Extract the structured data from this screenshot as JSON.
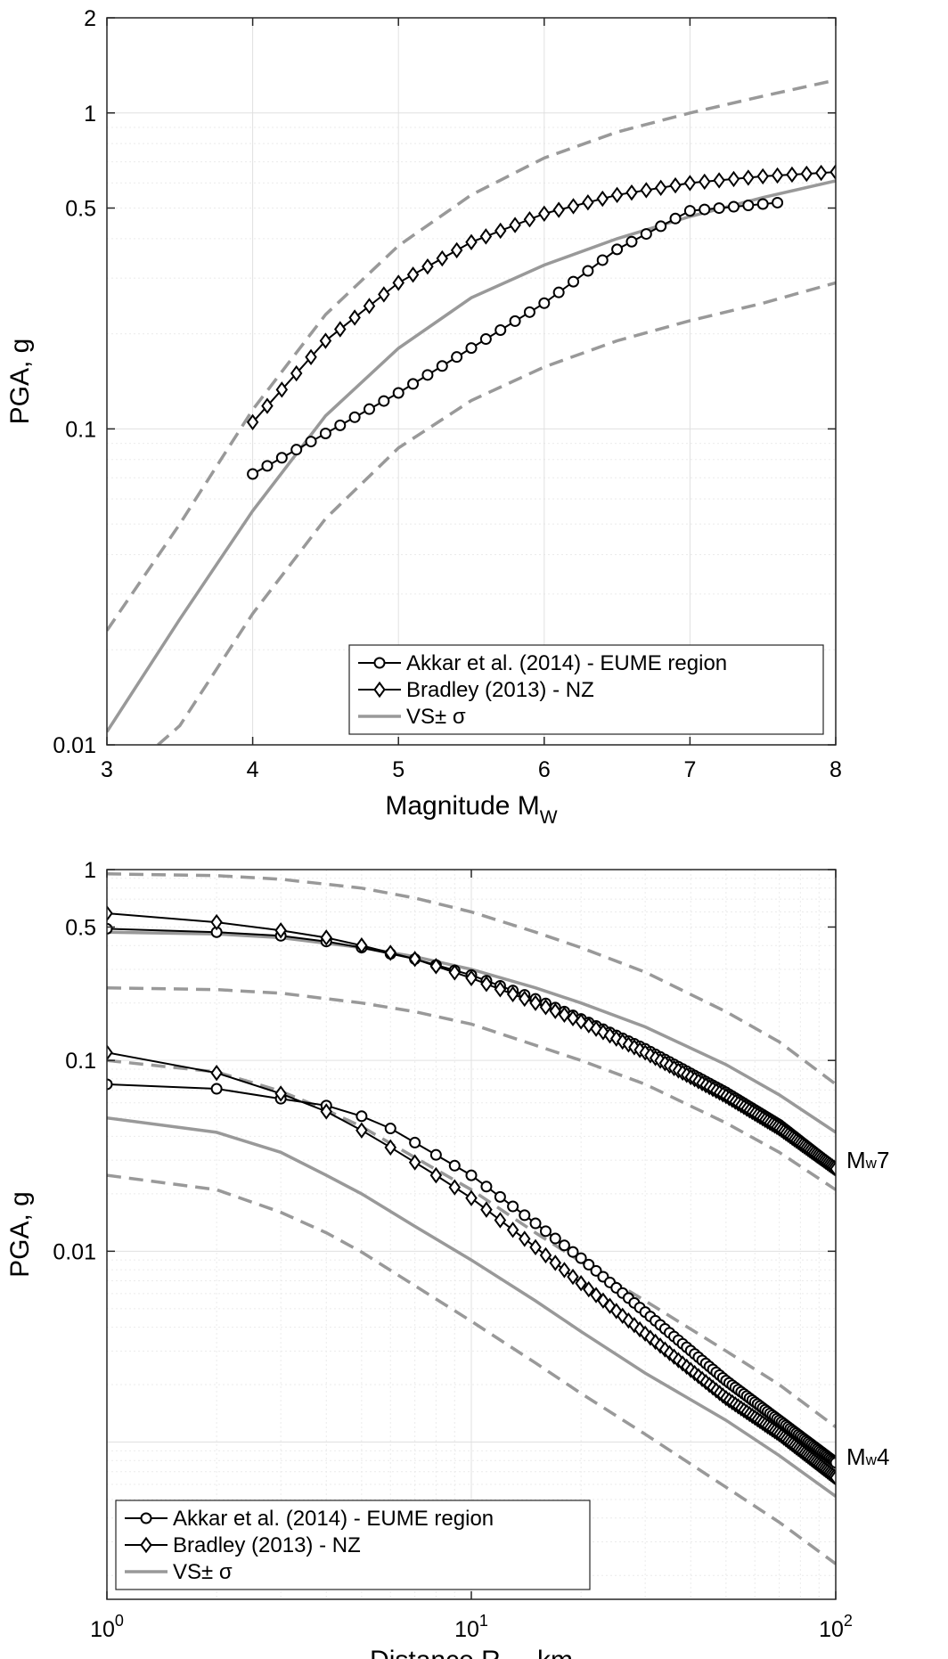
{
  "chart_data": [
    {
      "type": "line",
      "xlabel": "Magnitude M",
      "xlabel_sub": "W",
      "ylabel": "PGA, g",
      "xscale": "linear",
      "yscale": "log",
      "xlim": [
        3,
        8
      ],
      "ylim": [
        0.01,
        2
      ],
      "xticks": [
        3,
        4,
        5,
        6,
        7,
        8
      ],
      "xtick_labels": [
        "3",
        "4",
        "5",
        "6",
        "7",
        "8"
      ],
      "yticks": [
        0.01,
        0.1,
        0.5,
        1,
        2
      ],
      "ytick_labels": [
        "0.01",
        "0.1",
        "0.5",
        "1",
        "2"
      ],
      "grid": true,
      "legend_placement": "bottom-right",
      "legend": [
        "Akkar et al. (2014) - EUME region",
        "Bradley (2013) - NZ",
        "VS± σ"
      ],
      "colors": {
        "gmpe": "#000000",
        "vs": "#999999"
      },
      "series": [
        {
          "name": "Akkar et al. (2014) - EUME region",
          "marker": "circle",
          "color": "#000000",
          "x": [
            4.0,
            5.0,
            6.0,
            6.5,
            7.0,
            7.6
          ],
          "y": [
            0.072,
            0.13,
            0.25,
            0.37,
            0.49,
            0.52
          ]
        },
        {
          "name": "Bradley (2013) - NZ",
          "marker": "diamond",
          "color": "#000000",
          "x": [
            4.0,
            4.5,
            5.0,
            5.5,
            6.0,
            6.5,
            7.0,
            7.5,
            8.0
          ],
          "y": [
            0.105,
            0.19,
            0.29,
            0.39,
            0.48,
            0.55,
            0.6,
            0.63,
            0.65
          ]
        },
        {
          "name": "VS",
          "style": "solid",
          "color": "#999999",
          "x": [
            3.0,
            3.5,
            4.0,
            4.5,
            5.0,
            5.5,
            6.0,
            6.5,
            7.0,
            7.5,
            8.0
          ],
          "y": [
            0.011,
            0.025,
            0.055,
            0.11,
            0.18,
            0.26,
            0.33,
            0.4,
            0.47,
            0.54,
            0.61
          ]
        },
        {
          "name": "VS+σ",
          "style": "dashed",
          "color": "#999999",
          "x": [
            3.0,
            3.5,
            4.0,
            4.5,
            5.0,
            5.5,
            6.0,
            6.5,
            7.0,
            7.5,
            8.0
          ],
          "y": [
            0.023,
            0.05,
            0.115,
            0.23,
            0.38,
            0.55,
            0.72,
            0.87,
            1.0,
            1.13,
            1.27
          ]
        },
        {
          "name": "VS-σ",
          "style": "dashed",
          "color": "#999999",
          "x": [
            3.35,
            3.5,
            4.0,
            4.5,
            5.0,
            5.5,
            6.0,
            6.5,
            7.0,
            7.5,
            8.0
          ],
          "y": [
            0.01,
            0.0115,
            0.026,
            0.052,
            0.087,
            0.123,
            0.157,
            0.19,
            0.22,
            0.25,
            0.29
          ]
        }
      ]
    },
    {
      "type": "line",
      "xlabel": "Distance R",
      "xlabel_sub": "JB",
      "xlabel_suffix": ", km",
      "ylabel": "PGA, g",
      "xscale": "log",
      "yscale": "log",
      "xlim": [
        1,
        100
      ],
      "ylim": [
        0.00015,
        1
      ],
      "xticks": [
        1,
        10,
        100
      ],
      "xtick_labels": [
        {
          "base": "10",
          "exp": "0"
        },
        {
          "base": "10",
          "exp": "1"
        },
        {
          "base": "10",
          "exp": "2"
        }
      ],
      "yticks": [
        0.01,
        0.1,
        0.5,
        1
      ],
      "ytick_labels": [
        "0.01",
        "0.1",
        "0.5",
        "1"
      ],
      "grid": true,
      "legend_placement": "bottom-left",
      "legend": [
        "Akkar et al. (2014) - EUME region",
        "Bradley (2013) - NZ",
        "VS± σ"
      ],
      "colors": {
        "gmpe": "#000000",
        "vs": "#999999"
      },
      "annotations": [
        {
          "prefix": "M",
          "sub": "w",
          "suffix": "7",
          "x": 100,
          "y": 0.03
        },
        {
          "prefix": "M",
          "sub": "w",
          "suffix": "4",
          "x": 100,
          "y": 0.00084
        }
      ],
      "series": [
        {
          "name": "Akkar et al. (2014) - EUME region (Mw7)",
          "marker": "circle",
          "color": "#000000",
          "x": [
            1,
            2,
            3,
            4,
            5,
            7,
            10,
            15,
            20,
            30,
            50,
            70,
            100
          ],
          "y": [
            0.49,
            0.47,
            0.45,
            0.42,
            0.39,
            0.34,
            0.28,
            0.21,
            0.165,
            0.115,
            0.068,
            0.046,
            0.027
          ]
        },
        {
          "name": "Bradley (2013) - NZ (Mw7)",
          "marker": "diamond",
          "color": "#000000",
          "x": [
            1,
            2,
            3,
            4,
            5,
            7,
            10,
            15,
            20,
            30,
            50,
            70,
            100
          ],
          "y": [
            0.59,
            0.53,
            0.48,
            0.44,
            0.4,
            0.34,
            0.27,
            0.2,
            0.16,
            0.11,
            0.065,
            0.044,
            0.027
          ]
        },
        {
          "name": "VS (Mw7)",
          "style": "solid",
          "color": "#999999",
          "x": [
            1,
            2,
            3,
            5,
            7,
            10,
            15,
            20,
            30,
            50,
            70,
            100
          ],
          "y": [
            0.47,
            0.46,
            0.44,
            0.39,
            0.35,
            0.3,
            0.24,
            0.2,
            0.15,
            0.095,
            0.066,
            0.042
          ]
        },
        {
          "name": "VS+σ (Mw7)",
          "style": "dashed",
          "color": "#999999",
          "x": [
            1,
            2,
            3,
            5,
            7,
            10,
            15,
            20,
            30,
            50,
            70,
            100
          ],
          "y": [
            0.95,
            0.93,
            0.89,
            0.8,
            0.71,
            0.6,
            0.47,
            0.39,
            0.29,
            0.18,
            0.125,
            0.075
          ]
        },
        {
          "name": "VS-σ (Mw7)",
          "style": "dashed",
          "color": "#999999",
          "x": [
            1,
            2,
            3,
            5,
            7,
            10,
            15,
            20,
            30,
            50,
            70,
            100
          ],
          "y": [
            0.24,
            0.235,
            0.225,
            0.2,
            0.18,
            0.155,
            0.12,
            0.1,
            0.075,
            0.047,
            0.033,
            0.021
          ]
        },
        {
          "name": "Akkar et al. (2014) - EUME region (Mw4)",
          "marker": "circle",
          "color": "#000000",
          "x": [
            1,
            2,
            3,
            4,
            5,
            6,
            8,
            10,
            15,
            20,
            30,
            50,
            70,
            100
          ],
          "y": [
            0.075,
            0.071,
            0.063,
            0.058,
            0.051,
            0.044,
            0.032,
            0.025,
            0.014,
            0.0092,
            0.0048,
            0.0021,
            0.0013,
            0.00078
          ]
        },
        {
          "name": "Bradley (2013) - NZ (Mw4)",
          "marker": "diamond",
          "color": "#000000",
          "x": [
            1,
            2,
            3,
            4,
            5,
            6,
            8,
            10,
            15,
            20,
            30,
            50,
            70,
            100
          ],
          "y": [
            0.11,
            0.086,
            0.067,
            0.054,
            0.043,
            0.035,
            0.025,
            0.019,
            0.0105,
            0.0068,
            0.0037,
            0.0017,
            0.0011,
            0.00065
          ]
        },
        {
          "name": "VS (Mw4)",
          "style": "solid",
          "color": "#999999",
          "x": [
            1,
            2,
            3,
            4,
            5,
            7,
            10,
            15,
            20,
            30,
            50,
            70,
            100
          ],
          "y": [
            0.05,
            0.042,
            0.033,
            0.025,
            0.02,
            0.0135,
            0.009,
            0.0055,
            0.0038,
            0.0023,
            0.0013,
            0.00085,
            0.00052
          ]
        },
        {
          "name": "VS+σ (Mw4)",
          "style": "dashed",
          "color": "#999999",
          "x": [
            1,
            2,
            3,
            4,
            5,
            7,
            10,
            15,
            20,
            30,
            50,
            70,
            100
          ],
          "y": [
            0.1,
            0.087,
            0.069,
            0.055,
            0.045,
            0.031,
            0.021,
            0.0125,
            0.0088,
            0.0055,
            0.003,
            0.002,
            0.0012
          ]
        },
        {
          "name": "VS-σ (Mw4)",
          "style": "dashed",
          "color": "#999999",
          "x": [
            1,
            2,
            3,
            4,
            5,
            7,
            10,
            15,
            20,
            30,
            50,
            70,
            100
          ],
          "y": [
            0.025,
            0.021,
            0.016,
            0.0125,
            0.0099,
            0.0066,
            0.0043,
            0.0026,
            0.0018,
            0.0011,
            0.00058,
            0.00038,
            0.00023
          ]
        }
      ]
    }
  ]
}
